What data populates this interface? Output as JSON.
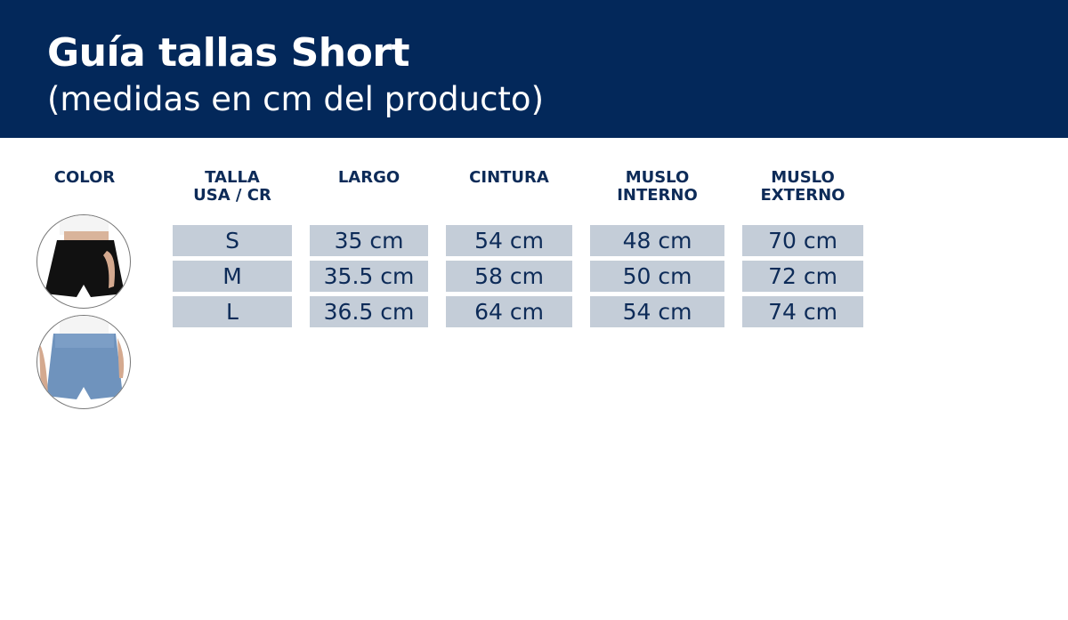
{
  "header": {
    "title": "Guía tallas Short",
    "subtitle": "(medidas en cm del producto)"
  },
  "color_label": "COLOR",
  "colors": [
    {
      "name": "black",
      "hex": "#111111"
    },
    {
      "name": "blue",
      "hex": "#6f93bd"
    }
  ],
  "columns": [
    {
      "line1": "TALLA",
      "line2": "USA / CR"
    },
    {
      "line1": "LARGO",
      "line2": ""
    },
    {
      "line1": "CINTURA",
      "line2": ""
    },
    {
      "line1": "MUSLO",
      "line2": "INTERNO"
    },
    {
      "line1": "MUSLO",
      "line2": "EXTERNO"
    }
  ],
  "rows": [
    [
      "S",
      "35 cm",
      "54 cm",
      "48 cm",
      "70 cm"
    ],
    [
      "M",
      "35.5 cm",
      "58 cm",
      "50 cm",
      "72 cm"
    ],
    [
      "L",
      "36.5 cm",
      "64 cm",
      "54 cm",
      "74 cm"
    ]
  ],
  "theme": {
    "navy": "#03285a",
    "cell_bg": "#c4cdd8"
  }
}
